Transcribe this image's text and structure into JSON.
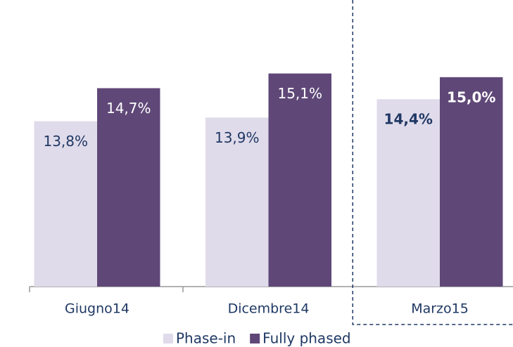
{
  "chart_data": {
    "type": "bar",
    "categories": [
      "Giugno14",
      "Dicembre14",
      "Marzo15"
    ],
    "series": [
      {
        "name": "Phase-in",
        "color": "#e0dbea",
        "label_color": "#1f3864",
        "values": [
          13.8,
          13.9,
          14.4
        ],
        "value_labels": [
          "13,8%",
          "13,9%",
          "14,4%"
        ]
      },
      {
        "name": "Fully phased",
        "color": "#5f4878",
        "label_color": "#ffffff",
        "values": [
          14.7,
          15.1,
          15.0
        ],
        "value_labels": [
          "14,7%",
          "15,1%",
          "15,0%"
        ]
      }
    ],
    "ylim": [
      9.3,
      17.1
    ],
    "highlight_category": 2,
    "legend": "bottom"
  }
}
